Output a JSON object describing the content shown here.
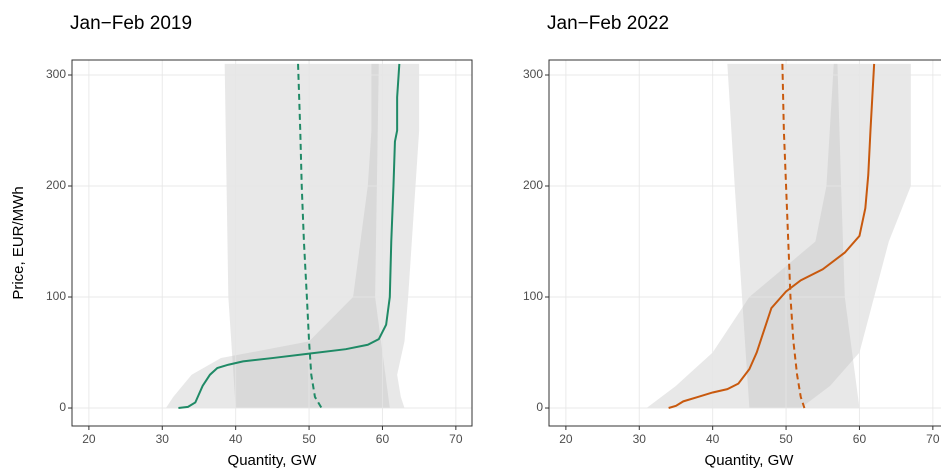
{
  "chart_data": [
    {
      "type": "line",
      "title": "Jan−Feb 2019",
      "x_label": "Quantity, GW",
      "y_label": "Price, EUR/MWh",
      "xlim": [
        17.7,
        72.2
      ],
      "ylim": [
        -16.2,
        313.5
      ],
      "xticks": [
        20,
        30,
        40,
        50,
        60,
        70
      ],
      "yticks": [
        0,
        100,
        200,
        300
      ],
      "grid": true,
      "bands": [
        {
          "color": "#bdbdbd",
          "y": [
            310,
            100,
            50,
            0
          ],
          "x_low": [
            38.5,
            39,
            39.5,
            40
          ],
          "x_high": [
            59.5,
            59,
            60,
            61
          ]
        },
        {
          "color": "#bdbdbd",
          "y": [
            310,
            250,
            200,
            100,
            60,
            45,
            30,
            10,
            0
          ],
          "x_low": [
            58.5,
            58.5,
            58,
            56,
            50,
            38,
            34,
            31.5,
            30.5
          ],
          "x_high": [
            65,
            65,
            64.5,
            63.5,
            63,
            62.5,
            62,
            62.5,
            63
          ]
        }
      ],
      "series": [
        {
          "color": "#1f8a66",
          "dashed": false,
          "x": [
            32.2,
            33.5,
            34.5,
            35.5,
            36.5,
            37.5,
            39,
            41,
            45,
            50,
            55,
            58,
            59.5,
            60.5,
            61,
            61.2,
            61.5,
            61.7,
            62,
            62,
            62.3
          ],
          "y": [
            0,
            1,
            5,
            20,
            30,
            36,
            39,
            42,
            45,
            49,
            53,
            57,
            62,
            75,
            100,
            150,
            200,
            240,
            250,
            280,
            310
          ]
        },
        {
          "color": "#1f8a66",
          "dashed": true,
          "x": [
            48.5,
            48.8,
            49,
            49.3,
            49.7,
            50,
            50.3,
            50.8,
            51.7
          ],
          "y": [
            310,
            250,
            200,
            150,
            100,
            60,
            30,
            10,
            0
          ]
        }
      ]
    },
    {
      "type": "line",
      "title": "Jan−Feb 2022",
      "x_label": "Quantity, GW",
      "xlim": [
        17.7,
        72.2
      ],
      "ylim": [
        -16.2,
        313.5
      ],
      "xticks": [
        20,
        30,
        40,
        50,
        60,
        70
      ],
      "yticks": [
        0,
        100,
        200,
        300
      ],
      "grid": true,
      "bands": [
        {
          "color": "#bdbdbd",
          "y": [
            310,
            200,
            100,
            0
          ],
          "x_low": [
            42,
            43,
            44,
            45
          ],
          "x_high": [
            57,
            57.5,
            58,
            60
          ]
        },
        {
          "color": "#bdbdbd",
          "y": [
            310,
            200,
            150,
            100,
            50,
            20,
            0
          ],
          "x_low": [
            56.5,
            55.5,
            54,
            45,
            40,
            35,
            31
          ],
          "x_high": [
            67,
            67,
            64,
            62,
            60,
            56,
            52
          ]
        }
      ],
      "series": [
        {
          "color": "#c8590e",
          "dashed": false,
          "x": [
            34,
            35,
            36,
            38,
            40,
            42,
            43.5,
            45,
            46,
            47,
            48,
            50,
            52,
            55,
            58,
            60,
            60.8,
            61.2,
            61.5,
            62
          ],
          "y": [
            0,
            2,
            6,
            10,
            14,
            17,
            22,
            35,
            50,
            70,
            90,
            105,
            115,
            125,
            140,
            155,
            180,
            210,
            250,
            310
          ]
        },
        {
          "color": "#c8590e",
          "dashed": true,
          "x": [
            49.5,
            49.7,
            50,
            50.3,
            50.6,
            51,
            51.5,
            52,
            52.5
          ],
          "y": [
            310,
            250,
            200,
            150,
            100,
            60,
            30,
            10,
            0
          ]
        }
      ]
    }
  ]
}
